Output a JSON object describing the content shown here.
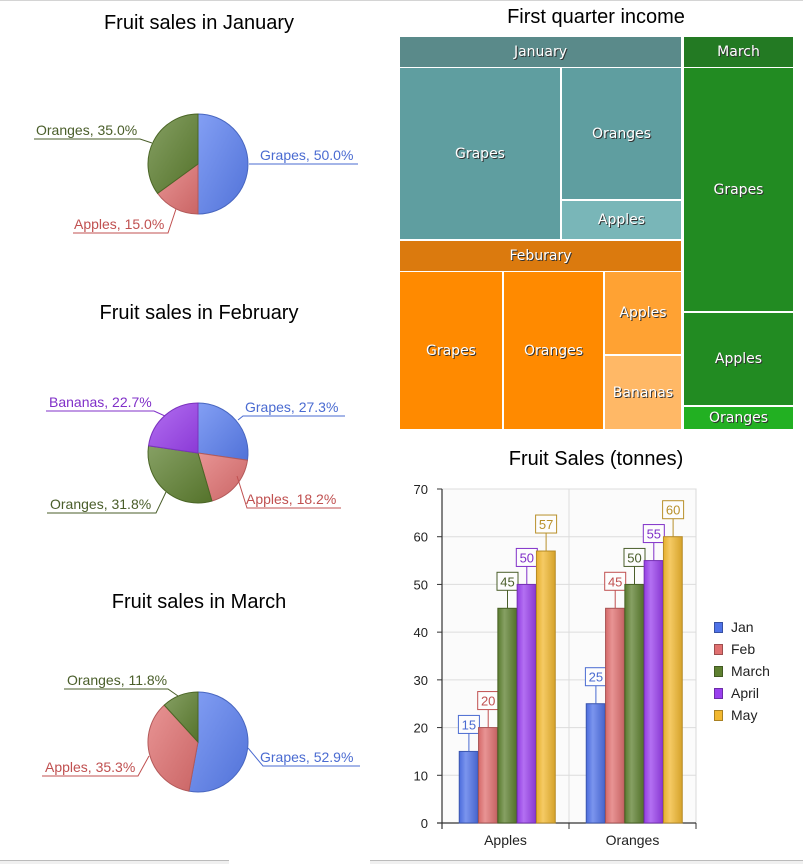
{
  "pies": [
    {
      "title": "Fruit sales in January",
      "slices": [
        {
          "name": "Grapes",
          "value": 50.0,
          "label": "Grapes, 50.0%",
          "color": "#5a7ff0",
          "text_color": "#4a6bd1"
        },
        {
          "name": "Apples",
          "value": 15.0,
          "label": "Apples, 15.0%",
          "color": "#e07070",
          "text_color": "#c05050"
        },
        {
          "name": "Oranges",
          "value": 35.0,
          "label": "Oranges, 35.0%",
          "color": "#5e8030",
          "text_color": "#4a5e2a"
        }
      ]
    },
    {
      "title": "Fruit sales in February",
      "slices": [
        {
          "name": "Grapes",
          "value": 27.3,
          "label": "Grapes, 27.3%",
          "color": "#5a7ff0",
          "text_color": "#4a6bd1"
        },
        {
          "name": "Apples",
          "value": 18.2,
          "label": "Apples, 18.2%",
          "color": "#e07070",
          "text_color": "#c05050"
        },
        {
          "name": "Oranges",
          "value": 31.8,
          "label": "Oranges, 31.8%",
          "color": "#5e8030",
          "text_color": "#4a5e2a"
        },
        {
          "name": "Bananas",
          "value": 22.7,
          "label": "Bananas, 22.7%",
          "color": "#9a40ee",
          "text_color": "#8030c8"
        }
      ]
    },
    {
      "title": "Fruit sales in March",
      "slices": [
        {
          "name": "Grapes",
          "value": 52.9,
          "label": "Grapes, 52.9%",
          "color": "#5a7ff0",
          "text_color": "#4a6bd1"
        },
        {
          "name": "Apples",
          "value": 35.3,
          "label": "Apples, 35.3%",
          "color": "#e07070",
          "text_color": "#c05050"
        },
        {
          "name": "Oranges",
          "value": 11.8,
          "label": "Oranges, 11.8%",
          "color": "#5e8030",
          "text_color": "#4a5e2a"
        }
      ]
    }
  ],
  "treemap": {
    "title": "First quarter income",
    "groups": [
      {
        "name": "January",
        "color": "#5a8a8a",
        "children": [
          {
            "name": "Grapes",
            "color": "#5f9ea0"
          },
          {
            "name": "Oranges",
            "color": "#5f9ea0"
          },
          {
            "name": "Apples",
            "color": "#79b6b8"
          }
        ]
      },
      {
        "name": "Feburary",
        "color": "#db7a0e",
        "children": [
          {
            "name": "Grapes",
            "color": "#ff8a00"
          },
          {
            "name": "Oranges",
            "color": "#ff8a00"
          },
          {
            "name": "Apples",
            "color": "#ffa233"
          },
          {
            "name": "Bananas",
            "color": "#ffb866"
          }
        ]
      },
      {
        "name": "March",
        "color": "#237a23",
        "children": [
          {
            "name": "Grapes",
            "color": "#228b22"
          },
          {
            "name": "Apples",
            "color": "#228b22"
          },
          {
            "name": "Oranges",
            "color": "#22b022"
          }
        ]
      }
    ]
  },
  "chart_data": {
    "type": "bar",
    "title": "Fruit Sales (tonnes)",
    "categories": [
      "Apples",
      "Oranges"
    ],
    "series": [
      {
        "name": "Jan",
        "values": [
          15,
          25
        ],
        "color": "#4f72e8",
        "label_color": "#4a6bd1"
      },
      {
        "name": "Feb",
        "values": [
          20,
          45
        ],
        "color": "#e07070",
        "label_color": "#c05050"
      },
      {
        "name": "March",
        "values": [
          45,
          50
        ],
        "color": "#5e8030",
        "label_color": "#4a5e2a"
      },
      {
        "name": "April",
        "values": [
          50,
          55
        ],
        "color": "#9a40ee",
        "label_color": "#8030c8"
      },
      {
        "name": "May",
        "values": [
          57,
          60
        ],
        "color": "#f2b830",
        "label_color": "#b8902a"
      }
    ],
    "xlabel": "",
    "ylabel": "",
    "ylim": [
      0,
      70
    ],
    "yticks": [
      "0",
      "10",
      "20",
      "30",
      "40",
      "50",
      "60",
      "70"
    ],
    "grid": true,
    "legend": "right"
  }
}
